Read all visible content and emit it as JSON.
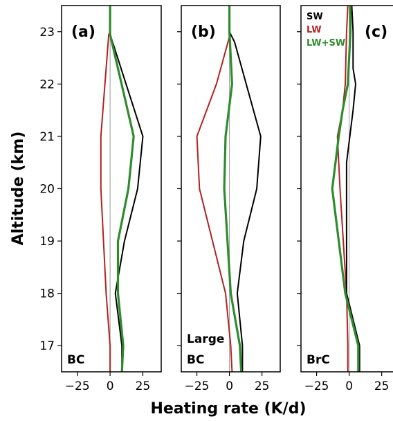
{
  "xlabel": "Heating rate (K/d)",
  "ylabel": "Altitude (km)",
  "colors": {
    "SW": "#000000",
    "LW": "#b22222",
    "LW+SW": "#2e8b2e",
    "zero_line": "#999999"
  },
  "legend": [
    {
      "name": "SW",
      "color": "#000000"
    },
    {
      "name": "LW",
      "color": "#b22222"
    },
    {
      "name": "LW+SW",
      "color": "#2e8b2e"
    }
  ],
  "chart_data": [
    {
      "type": "line",
      "panel_label": "(a)",
      "annotation": [
        "BC"
      ],
      "xlim": [
        -37,
        39
      ],
      "ylim": [
        16.5,
        23.5
      ],
      "xticks": [
        -25,
        0,
        25
      ],
      "yticks": [
        17,
        18,
        19,
        20,
        21,
        22,
        23
      ],
      "series": [
        {
          "name": "SW",
          "x": [
            0,
            0,
            0,
            25,
            21,
            11,
            4,
            9,
            9
          ],
          "y": [
            23.5,
            23.0,
            22.95,
            21.0,
            20.0,
            19.0,
            18.0,
            17.0,
            16.5
          ]
        },
        {
          "name": "LW",
          "x": [
            0,
            0,
            -1,
            -7,
            -7,
            -5,
            -3,
            0,
            0
          ],
          "y": [
            23.5,
            23.0,
            22.95,
            21.0,
            20.0,
            19.0,
            18.0,
            17.0,
            16.5
          ]
        },
        {
          "name": "LW+SW",
          "x": [
            0,
            0,
            0,
            18,
            14,
            6,
            6,
            10,
            9
          ],
          "y": [
            23.5,
            23.0,
            22.95,
            21.0,
            20.0,
            19.0,
            18.0,
            17.0,
            16.5
          ]
        }
      ]
    },
    {
      "type": "line",
      "panel_label": "(b)",
      "annotation": [
        "Large",
        "BC"
      ],
      "xlim": [
        -37,
        39
      ],
      "ylim": [
        16.5,
        23.5
      ],
      "xticks": [
        -25,
        0,
        25
      ],
      "yticks": [
        17,
        18,
        19,
        20,
        21,
        22,
        23
      ],
      "series": [
        {
          "name": "SW",
          "x": [
            0,
            0,
            4,
            24,
            21,
            11,
            6,
            10,
            10
          ],
          "y": [
            23.5,
            23.0,
            22.8,
            21.0,
            20.0,
            19.0,
            18.0,
            17.0,
            16.5
          ]
        },
        {
          "name": "LW",
          "x": [
            0,
            0,
            0,
            -10,
            -25,
            -23,
            -3,
            1,
            2
          ],
          "y": [
            23.5,
            23.0,
            22.9,
            22.0,
            21.0,
            20.0,
            18.0,
            17.0,
            16.5
          ]
        },
        {
          "name": "LW+SW",
          "x": [
            0,
            0,
            2,
            -3,
            -4,
            1,
            8,
            9
          ],
          "y": [
            23.5,
            23.0,
            22.0,
            21.0,
            20.0,
            18.0,
            17.0,
            16.5
          ]
        }
      ]
    },
    {
      "type": "line",
      "panel_label": "(c)",
      "annotation": [
        "BrC"
      ],
      "xlim": [
        -37,
        39
      ],
      "ylim": [
        16.5,
        23.5
      ],
      "xticks": [
        -25,
        0,
        25
      ],
      "yticks": [
        17,
        18,
        19,
        20,
        21,
        22,
        23
      ],
      "series": [
        {
          "name": "SW",
          "x": [
            2,
            3,
            3,
            5,
            3,
            -2,
            -2,
            8,
            8
          ],
          "y": [
            23.5,
            23.0,
            22.3,
            22.0,
            21.5,
            20.5,
            18.0,
            17.0,
            16.5
          ]
        },
        {
          "name": "LW",
          "x": [
            -1,
            -2,
            -3,
            -5,
            -9,
            -7,
            -2,
            -1,
            -1
          ],
          "y": [
            23.5,
            23.0,
            22.0,
            21.5,
            21.0,
            20.0,
            18.0,
            17.0,
            16.5
          ]
        },
        {
          "name": "LW+SW",
          "x": [
            1,
            1,
            -1,
            -5,
            -8,
            -13,
            -3,
            7,
            7
          ],
          "y": [
            23.5,
            23.0,
            22.0,
            21.5,
            21.0,
            20.0,
            18.0,
            17.0,
            16.5
          ]
        }
      ]
    }
  ]
}
